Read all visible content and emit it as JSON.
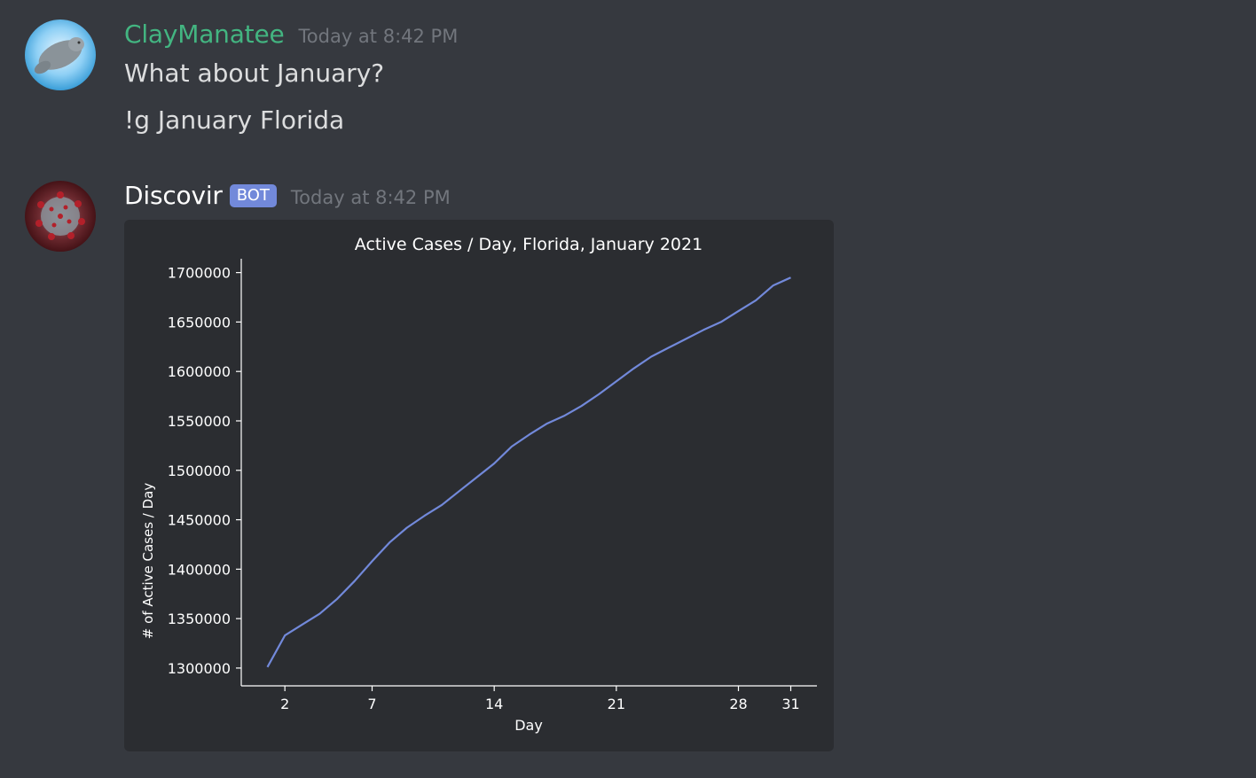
{
  "messages": [
    {
      "author": "ClayManatee",
      "author_color": "#43b581",
      "timestamp": "Today at 8:42 PM",
      "avatar_icon": "manatee-avatar",
      "lines": [
        "What about January?",
        "!g January Florida"
      ]
    },
    {
      "author": "Discovir",
      "author_color": "#ffffff",
      "bot_tag": "BOT",
      "timestamp": "Today at 8:42 PM",
      "avatar_icon": "coronavirus-avatar"
    }
  ],
  "colors": {
    "background": "#36393f",
    "embed_bg": "#2b2d31",
    "line": "#7289da",
    "bot_tag": "#7289da"
  },
  "chart_data": {
    "type": "line",
    "title": "Active Cases / Day, Florida, January 2021",
    "xlabel": "Day",
    "ylabel": "# of Active Cases / Day",
    "xticks": [
      2,
      7,
      14,
      21,
      28,
      31
    ],
    "yticks": [
      1300000,
      1350000,
      1400000,
      1450000,
      1500000,
      1550000,
      1600000,
      1650000,
      1700000
    ],
    "xlim": [
      -0.5,
      32.5
    ],
    "ylim": [
      1282000,
      1714000
    ],
    "grid": false,
    "series": [
      {
        "x": [
          1,
          2,
          3,
          4,
          5,
          6,
          7,
          8,
          9,
          10,
          11,
          12,
          13,
          14,
          15,
          16,
          17,
          18,
          19,
          20,
          21,
          22,
          23,
          24,
          25,
          26,
          27,
          28,
          29,
          30,
          31
        ],
        "values": [
          1301000,
          1333000,
          1344000,
          1355000,
          1370000,
          1388000,
          1408000,
          1427000,
          1442000,
          1454000,
          1465000,
          1479000,
          1493000,
          1507000,
          1524000,
          1536000,
          1547000,
          1555000,
          1565000,
          1577000,
          1590000,
          1603000,
          1615000,
          1624000,
          1633000,
          1642000,
          1650000,
          1661000,
          1672000,
          1687000,
          1695000
        ]
      }
    ]
  }
}
